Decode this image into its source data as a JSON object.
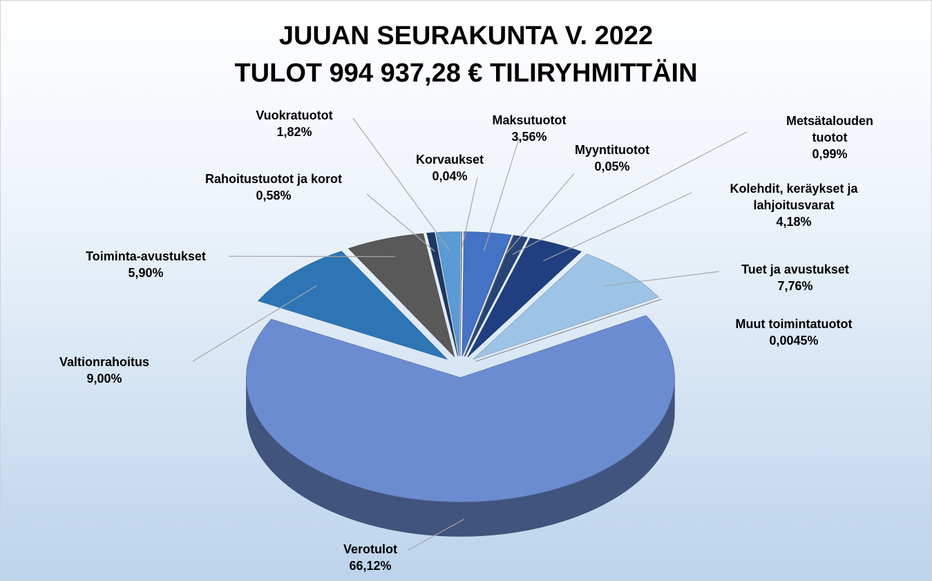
{
  "chart_data": {
    "type": "pie",
    "title": "JUUAN SEURAKUNTA V. 2022",
    "subtitle": "TULOT 994 937,28 € TILIRYHMITTÄIN",
    "categories": [
      "Verotulot",
      "Valtionrahoitus",
      "Toiminta-avustukset",
      "Rahoitustuotot ja korot",
      "Vuokratuotot",
      "Korvaukset",
      "Maksutuotot",
      "Myyntituotot",
      "Metsätalouden tuotot",
      "Kolehdit, keräykset ja lahjoitusvarat",
      "Tuet ja avustukset",
      "Muut toimintatuotot"
    ],
    "values": [
      66.12,
      9.0,
      5.9,
      0.58,
      1.82,
      0.04,
      3.56,
      0.05,
      0.99,
      4.18,
      7.76,
      0.0045
    ],
    "value_labels": [
      "66,12%",
      "9,00%",
      "5,90%",
      "0,58%",
      "1,82%",
      "0,04%",
      "3,56%",
      "0,05%",
      "0,99%",
      "4,18%",
      "7,76%",
      "0,0045%"
    ],
    "colors": [
      "#6b8cd0",
      "#2e75b6",
      "#595959",
      "#1f3864",
      "#5b9bd5",
      "#7f7f7f",
      "#4472c4",
      "#636363",
      "#264478",
      "#203f80",
      "#9dc3e6",
      "#6f6f6f"
    ]
  }
}
